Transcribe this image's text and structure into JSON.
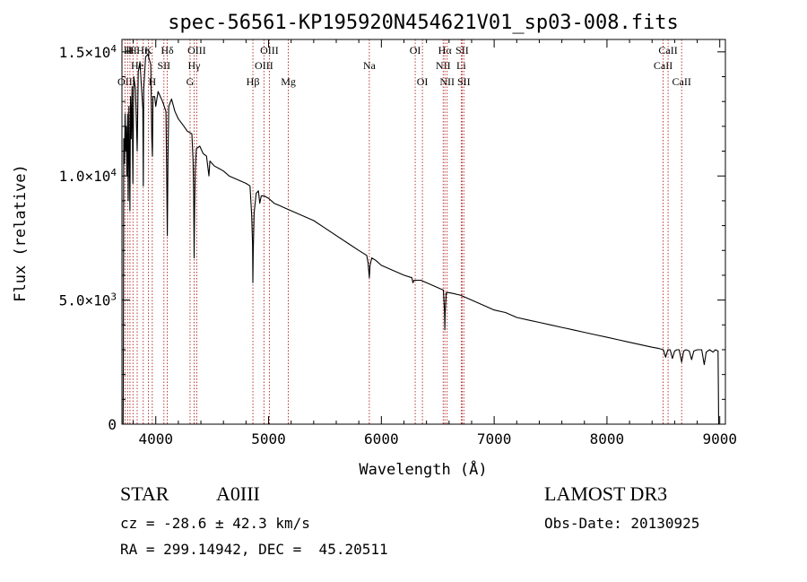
{
  "chart_data": {
    "type": "line",
    "title": "spec-56561-KP195920N454621V01_sp03-008.fits",
    "xlabel": "Wavelength (Å)",
    "ylabel": "Flux (relative)",
    "xlim": [
      3700,
      9050
    ],
    "ylim": [
      0,
      15500
    ],
    "x_ticks": [
      {
        "value": 4000,
        "label": "4000"
      },
      {
        "value": 5000,
        "label": "5000"
      },
      {
        "value": 6000,
        "label": "6000"
      },
      {
        "value": 7000,
        "label": "7000"
      },
      {
        "value": 8000,
        "label": "8000"
      },
      {
        "value": 9000,
        "label": "9000"
      }
    ],
    "y_ticks": [
      {
        "value": 0,
        "mantissa": "0",
        "exp": ""
      },
      {
        "value": 5000,
        "mantissa": "5.0×10",
        "exp": "3"
      },
      {
        "value": 10000,
        "mantissa": "1.0×10",
        "exp": "4"
      },
      {
        "value": 15000,
        "mantissa": "1.5×10",
        "exp": "4"
      }
    ],
    "series": [
      {
        "name": "flux",
        "points": [
          [
            3710,
            0
          ],
          [
            3712,
            1500
          ],
          [
            3716,
            11500
          ],
          [
            3722,
            10500
          ],
          [
            3728,
            12500
          ],
          [
            3733,
            11000
          ],
          [
            3738,
            12000
          ],
          [
            3744,
            10000
          ],
          [
            3750,
            12500
          ],
          [
            3756,
            9000
          ],
          [
            3762,
            12800
          ],
          [
            3766,
            11000
          ],
          [
            3771,
            8600
          ],
          [
            3776,
            13200
          ],
          [
            3782,
            11500
          ],
          [
            3790,
            13600
          ],
          [
            3797,
            9700
          ],
          [
            3805,
            14000
          ],
          [
            3820,
            13500
          ],
          [
            3835,
            11000
          ],
          [
            3845,
            14200
          ],
          [
            3860,
            14600
          ],
          [
            3870,
            13800
          ],
          [
            3885,
            12700
          ],
          [
            3889,
            9600
          ],
          [
            3893,
            13500
          ],
          [
            3910,
            14800
          ],
          [
            3930,
            14900
          ],
          [
            3955,
            14500
          ],
          [
            3965,
            11500
          ],
          [
            3970,
            10800
          ],
          [
            3975,
            13200
          ],
          [
            3990,
            13200
          ],
          [
            4000,
            12800
          ],
          [
            4020,
            13400
          ],
          [
            4060,
            13000
          ],
          [
            4090,
            12600
          ],
          [
            4096,
            10400
          ],
          [
            4102,
            7600
          ],
          [
            4108,
            10600
          ],
          [
            4115,
            12800
          ],
          [
            4140,
            13100
          ],
          [
            4170,
            12600
          ],
          [
            4200,
            12300
          ],
          [
            4250,
            12000
          ],
          [
            4280,
            11800
          ],
          [
            4320,
            11700
          ],
          [
            4330,
            10600
          ],
          [
            4336,
            9200
          ],
          [
            4340,
            6700
          ],
          [
            4344,
            8600
          ],
          [
            4350,
            10300
          ],
          [
            4360,
            11100
          ],
          [
            4390,
            11200
          ],
          [
            4420,
            10900
          ],
          [
            4450,
            10800
          ],
          [
            4471,
            10000
          ],
          [
            4480,
            10600
          ],
          [
            4520,
            10400
          ],
          [
            4560,
            10300
          ],
          [
            4600,
            10200
          ],
          [
            4650,
            10000
          ],
          [
            4700,
            9900
          ],
          [
            4750,
            9800
          ],
          [
            4800,
            9700
          ],
          [
            4835,
            9600
          ],
          [
            4850,
            8400
          ],
          [
            4858,
            7200
          ],
          [
            4861,
            5700
          ],
          [
            4864,
            6900
          ],
          [
            4872,
            8500
          ],
          [
            4890,
            9300
          ],
          [
            4910,
            9400
          ],
          [
            4922,
            8900
          ],
          [
            4935,
            9200
          ],
          [
            4960,
            9200
          ],
          [
            5000,
            9100
          ],
          [
            5050,
            8900
          ],
          [
            5100,
            8800
          ],
          [
            5150,
            8700
          ],
          [
            5200,
            8600
          ],
          [
            5300,
            8400
          ],
          [
            5400,
            8200
          ],
          [
            5500,
            7900
          ],
          [
            5600,
            7600
          ],
          [
            5700,
            7300
          ],
          [
            5800,
            7000
          ],
          [
            5870,
            6800
          ],
          [
            5882,
            6500
          ],
          [
            5893,
            5900
          ],
          [
            5900,
            6400
          ],
          [
            5915,
            6700
          ],
          [
            5950,
            6600
          ],
          [
            6000,
            6400
          ],
          [
            6100,
            6200
          ],
          [
            6200,
            6000
          ],
          [
            6270,
            5900
          ],
          [
            6280,
            5700
          ],
          [
            6290,
            5800
          ],
          [
            6350,
            5800
          ],
          [
            6400,
            5700
          ],
          [
            6500,
            5500
          ],
          [
            6550,
            5400
          ],
          [
            6560,
            4500
          ],
          [
            6563,
            3800
          ],
          [
            6566,
            4500
          ],
          [
            6575,
            5300
          ],
          [
            6600,
            5300
          ],
          [
            6700,
            5200
          ],
          [
            6800,
            5000
          ],
          [
            6900,
            4800
          ],
          [
            7000,
            4600
          ],
          [
            7100,
            4500
          ],
          [
            7200,
            4300
          ],
          [
            7300,
            4200
          ],
          [
            7400,
            4100
          ],
          [
            7500,
            4000
          ],
          [
            7600,
            3900
          ],
          [
            7700,
            3800
          ],
          [
            7800,
            3700
          ],
          [
            7900,
            3600
          ],
          [
            8000,
            3500
          ],
          [
            8100,
            3400
          ],
          [
            8200,
            3300
          ],
          [
            8300,
            3200
          ],
          [
            8400,
            3100
          ],
          [
            8460,
            3050
          ],
          [
            8500,
            3000
          ],
          [
            8520,
            2700
          ],
          [
            8540,
            3000
          ],
          [
            8560,
            3000
          ],
          [
            8580,
            2650
          ],
          [
            8600,
            2950
          ],
          [
            8620,
            3000
          ],
          [
            8640,
            3000
          ],
          [
            8662,
            2500
          ],
          [
            8680,
            2950
          ],
          [
            8700,
            3000
          ],
          [
            8730,
            2950
          ],
          [
            8750,
            2600
          ],
          [
            8770,
            2950
          ],
          [
            8800,
            3000
          ],
          [
            8840,
            3000
          ],
          [
            8862,
            2400
          ],
          [
            8880,
            2900
          ],
          [
            8910,
            3000
          ],
          [
            8940,
            2900
          ],
          [
            8960,
            3000
          ],
          [
            8985,
            2950
          ],
          [
            8990,
            0
          ]
        ]
      }
    ],
    "line_markers": [
      {
        "wavelength": 3727,
        "label": "OII",
        "row": 3
      },
      {
        "wavelength": 3750,
        "label": "H",
        "row": 1
      },
      {
        "wavelength": 3771,
        "label": "H",
        "row": 1
      },
      {
        "wavelength": 3798,
        "label": "H",
        "row": 1
      },
      {
        "wavelength": 3835,
        "label": "He",
        "row": 2
      },
      {
        "wavelength": 3889,
        "label": "Hη",
        "row": 1
      },
      {
        "wavelength": 3934,
        "label": "K",
        "row": 1
      },
      {
        "wavelength": 3969,
        "label": "H",
        "row": 3
      },
      {
        "wavelength": 4072,
        "label": "SII",
        "row": 2
      },
      {
        "wavelength": 4102,
        "label": "Hδ",
        "row": 1
      },
      {
        "wavelength": 4304,
        "label": "G",
        "row": 3
      },
      {
        "wavelength": 4340,
        "label": "Hγ",
        "row": 2
      },
      {
        "wavelength": 4363,
        "label": "OIII",
        "row": 1
      },
      {
        "wavelength": 4861,
        "label": "Hβ",
        "row": 3
      },
      {
        "wavelength": 4959,
        "label": "OIII",
        "row": 2
      },
      {
        "wavelength": 5007,
        "label": "OIII",
        "row": 1
      },
      {
        "wavelength": 5175,
        "label": "Mg",
        "row": 3
      },
      {
        "wavelength": 5893,
        "label": "Na",
        "row": 2
      },
      {
        "wavelength": 6300,
        "label": "OI",
        "row": 1
      },
      {
        "wavelength": 6364,
        "label": "OI",
        "row": 3
      },
      {
        "wavelength": 6548,
        "label": "NII",
        "row": 2
      },
      {
        "wavelength": 6563,
        "label": "Hα",
        "row": 1
      },
      {
        "wavelength": 6583,
        "label": "NII",
        "row": 3
      },
      {
        "wavelength": 6708,
        "label": "Li",
        "row": 2
      },
      {
        "wavelength": 6716,
        "label": "SII",
        "row": 1
      },
      {
        "wavelength": 6731,
        "label": "SII",
        "row": 3
      },
      {
        "wavelength": 8498,
        "label": "CaII",
        "row": 2
      },
      {
        "wavelength": 8542,
        "label": "CaII",
        "row": 1
      },
      {
        "wavelength": 8662,
        "label": "CaII",
        "row": 3
      }
    ]
  },
  "footer": {
    "object_class": "STAR",
    "subclass": "A0III",
    "survey": "LAMOST DR3",
    "redshift": "cz = -28.6 ± 42.3 km/s",
    "obs_date": "Obs-Date: 20130925",
    "coords": "RA = 299.14942, DEC =  45.20511"
  }
}
